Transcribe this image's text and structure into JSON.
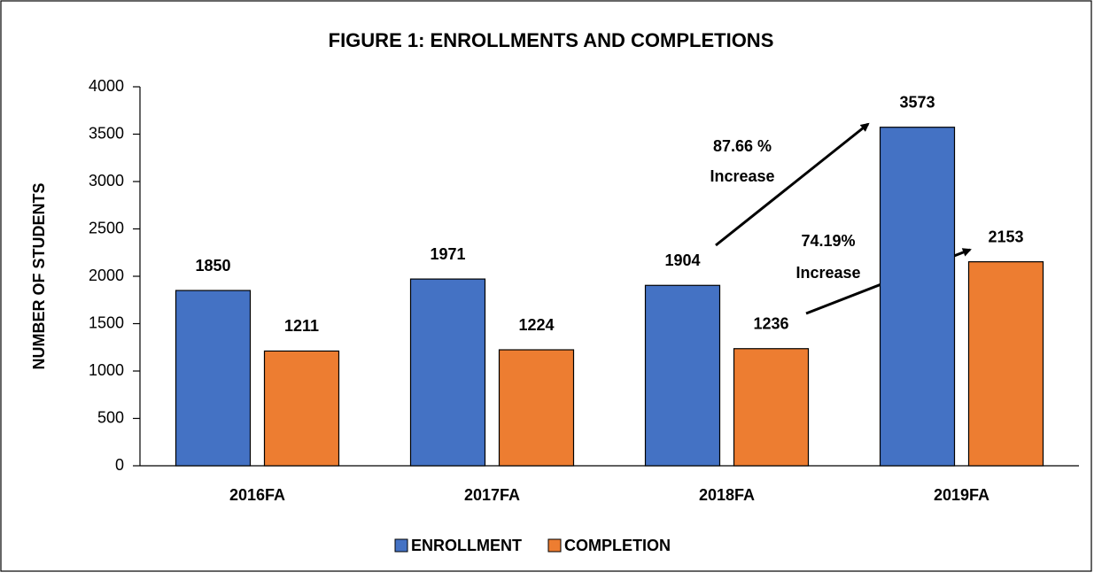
{
  "chart_data": {
    "type": "bar",
    "title": "FIGURE 1: ENROLLMENTS AND COMPLETIONS",
    "y_label": "NUMBER OF STUDENTS",
    "categories": [
      "2016FA",
      "2017FA",
      "2018FA",
      "2019FA"
    ],
    "series": [
      {
        "name": "ENROLLMENT",
        "color": "#4472c4",
        "values": [
          1850,
          1971,
          1904,
          3573
        ]
      },
      {
        "name": "COMPLETION",
        "color": "#ed7d31",
        "values": [
          1211,
          1224,
          1236,
          2153
        ]
      }
    ],
    "ylim": [
      0,
      4000
    ],
    "yticks": [
      0,
      500,
      1000,
      1500,
      2000,
      2500,
      3000,
      3500,
      4000
    ],
    "grid": false,
    "legend": "bottom",
    "annotations": [
      [
        "87.66 %",
        "Increase"
      ],
      [
        "74.19%",
        "Increase"
      ]
    ]
  }
}
